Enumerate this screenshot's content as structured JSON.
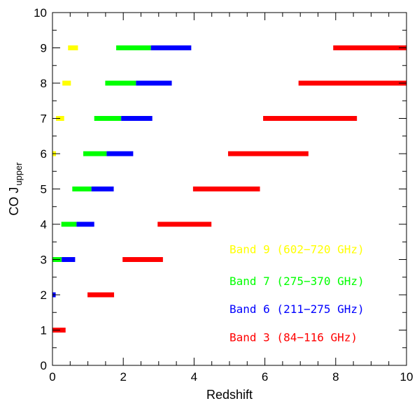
{
  "chart_data": {
    "type": "range-bar",
    "title": "",
    "xlabel": "Redshift",
    "ylabel": "CO J",
    "ylabel_sub": "upper",
    "xlim": [
      0,
      10
    ],
    "ylim": [
      0,
      10
    ],
    "xticks": [
      "0",
      "2",
      "4",
      "6",
      "8",
      "10"
    ],
    "yticks": [
      "0",
      "1",
      "2",
      "3",
      "4",
      "5",
      "6",
      "7",
      "8",
      "9",
      "10"
    ],
    "grid": false,
    "legend_position": "bottom-right",
    "series": [
      {
        "name": "Band 9 (602−720 GHz)",
        "color": "#ffff00",
        "bars": [
          {
            "j": 6,
            "z_min": 0.0,
            "z_max": 0.1
          },
          {
            "j": 7,
            "z_min": 0.1,
            "z_max": 0.33
          },
          {
            "j": 8,
            "z_min": 0.28,
            "z_max": 0.52
          },
          {
            "j": 9,
            "z_min": 0.44,
            "z_max": 0.72
          }
        ]
      },
      {
        "name": "Band 7 (275−370 GHz)",
        "color": "#00ff00",
        "bars": [
          {
            "j": 3,
            "z_min": 0.0,
            "z_max": 0.26
          },
          {
            "j": 4,
            "z_min": 0.25,
            "z_max": 0.68
          },
          {
            "j": 5,
            "z_min": 0.56,
            "z_max": 1.1
          },
          {
            "j": 6,
            "z_min": 0.87,
            "z_max": 1.53
          },
          {
            "j": 7,
            "z_min": 1.18,
            "z_max": 1.94
          },
          {
            "j": 8,
            "z_min": 1.49,
            "z_max": 2.36
          },
          {
            "j": 9,
            "z_min": 1.8,
            "z_max": 2.78
          }
        ]
      },
      {
        "name": "Band 6 (211−275 GHz)",
        "color": "#0000ff",
        "bars": [
          {
            "j": 2,
            "z_min": 0.0,
            "z_max": 0.09
          },
          {
            "j": 3,
            "z_min": 0.26,
            "z_max": 0.64
          },
          {
            "j": 4,
            "z_min": 0.68,
            "z_max": 1.18
          },
          {
            "j": 5,
            "z_min": 1.1,
            "z_max": 1.73
          },
          {
            "j": 6,
            "z_min": 1.53,
            "z_max": 2.28
          },
          {
            "j": 7,
            "z_min": 1.94,
            "z_max": 2.82
          },
          {
            "j": 8,
            "z_min": 2.36,
            "z_max": 3.37
          },
          {
            "j": 9,
            "z_min": 2.78,
            "z_max": 3.92
          }
        ]
      },
      {
        "name": "Band 3 (84−116 GHz)",
        "color": "#ff0000",
        "bars": [
          {
            "j": 1,
            "z_min": 0.0,
            "z_max": 0.37
          },
          {
            "j": 2,
            "z_min": 0.99,
            "z_max": 1.74
          },
          {
            "j": 3,
            "z_min": 1.98,
            "z_max": 3.12
          },
          {
            "j": 4,
            "z_min": 2.97,
            "z_max": 4.49
          },
          {
            "j": 5,
            "z_min": 3.97,
            "z_max": 5.86
          },
          {
            "j": 6,
            "z_min": 4.96,
            "z_max": 7.23
          },
          {
            "j": 7,
            "z_min": 5.95,
            "z_max": 8.6
          },
          {
            "j": 8,
            "z_min": 6.95,
            "z_max": 10.0
          },
          {
            "j": 9,
            "z_min": 7.93,
            "z_max": 10.0
          }
        ]
      }
    ]
  }
}
